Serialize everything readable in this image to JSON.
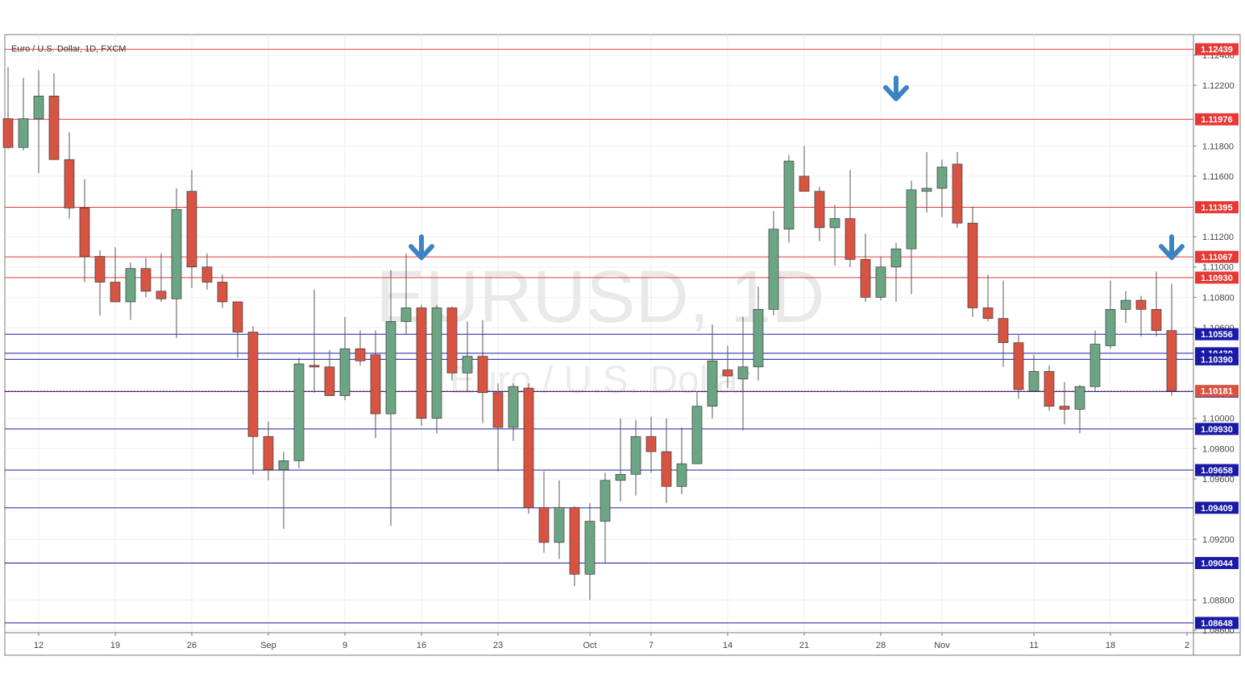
{
  "chart_data": {
    "type": "candlestick",
    "title": "Euro / U.S. Dollar, 1D, FXCM",
    "watermark_symbol": "EURUSD, 1D",
    "watermark_name": "Euro / U.S. Dollar",
    "ylim": [
      1.0864,
      1.1244
    ],
    "y_ticks": [
      "1.12400",
      "1.12200",
      "1.11800",
      "1.11600",
      "1.11200",
      "1.11000",
      "1.10800",
      "1.10600",
      "1.10000",
      "1.09800",
      "1.09600",
      "1.09200",
      "1.08800",
      "1.08600"
    ],
    "x_ticks": [
      {
        "label": "12",
        "index": 2
      },
      {
        "label": "19",
        "index": 7
      },
      {
        "label": "26",
        "index": 12
      },
      {
        "label": "Sep",
        "index": 17
      },
      {
        "label": "9",
        "index": 22
      },
      {
        "label": "16",
        "index": 27
      },
      {
        "label": "23",
        "index": 32
      },
      {
        "label": "Oct",
        "index": 38
      },
      {
        "label": "7",
        "index": 42
      },
      {
        "label": "14",
        "index": 47
      },
      {
        "label": "21",
        "index": 52
      },
      {
        "label": "28",
        "index": 57
      },
      {
        "label": "Nov",
        "index": 61
      },
      {
        "label": "11",
        "index": 67
      },
      {
        "label": "18",
        "index": 72
      },
      {
        "label": "2",
        "index": 77
      }
    ],
    "candles": [
      [
        1.1198,
        1.1232,
        1.1178,
        1.1179
      ],
      [
        1.1179,
        1.1225,
        1.1177,
        1.1198
      ],
      [
        1.1198,
        1.123,
        1.1162,
        1.1213
      ],
      [
        1.1213,
        1.1228,
        1.1171,
        1.1171
      ],
      [
        1.1171,
        1.1189,
        1.1132,
        1.1139
      ],
      [
        1.1139,
        1.1158,
        1.109,
        1.1107
      ],
      [
        1.1107,
        1.1111,
        1.1068,
        1.109
      ],
      [
        1.109,
        1.1113,
        1.1077,
        1.1077
      ],
      [
        1.1077,
        1.1103,
        1.1065,
        1.1099
      ],
      [
        1.1099,
        1.1106,
        1.108,
        1.1084
      ],
      [
        1.1084,
        1.1109,
        1.1077,
        1.1079
      ],
      [
        1.1079,
        1.1152,
        1.1053,
        1.1138
      ],
      [
        1.115,
        1.1164,
        1.1086,
        1.11
      ],
      [
        1.11,
        1.1109,
        1.1085,
        1.109
      ],
      [
        1.109,
        1.1095,
        1.1073,
        1.1077
      ],
      [
        1.1077,
        1.1077,
        1.104,
        1.1057
      ],
      [
        1.1057,
        1.1061,
        1.0963,
        1.0988
      ],
      [
        1.0988,
        1.0998,
        1.0959,
        1.0966
      ],
      [
        1.0966,
        1.0978,
        1.0927,
        1.0972
      ],
      [
        1.0972,
        1.104,
        1.0967,
        1.1036
      ],
      [
        1.1035,
        1.1085,
        1.1017,
        1.1034
      ],
      [
        1.1034,
        1.1045,
        1.1017,
        1.1015
      ],
      [
        1.1015,
        1.1067,
        1.1012,
        1.1046
      ],
      [
        1.1046,
        1.1058,
        1.1035,
        1.1038
      ],
      [
        1.1042,
        1.1058,
        1.0987,
        1.1003
      ],
      [
        1.1003,
        1.1098,
        1.0929,
        1.1064
      ],
      [
        1.1064,
        1.1109,
        1.1056,
        1.1073
      ],
      [
        1.1073,
        1.1075,
        1.0995,
        1.1
      ],
      [
        1.1,
        1.1075,
        1.099,
        1.1073
      ],
      [
        1.1073,
        1.1074,
        1.1025,
        1.103
      ],
      [
        1.103,
        1.1064,
        1.1018,
        1.1041
      ],
      [
        1.1041,
        1.1065,
        1.0997,
        1.1017
      ],
      [
        1.1017,
        1.1023,
        1.0965,
        1.0994
      ],
      [
        1.0994,
        1.1023,
        1.0985,
        1.1021
      ],
      [
        1.102,
        1.1023,
        1.0937,
        1.0941
      ],
      [
        1.0941,
        1.0965,
        1.0911,
        1.0918
      ],
      [
        1.0918,
        1.0959,
        1.0907,
        1.0941
      ],
      [
        1.0941,
        1.0942,
        1.0889,
        1.0897
      ],
      [
        1.0897,
        1.0944,
        1.088,
        1.0932
      ],
      [
        1.0932,
        1.0964,
        1.0904,
        1.0959
      ],
      [
        1.0959,
        1.1,
        1.0945,
        1.0963
      ],
      [
        1.0963,
        1.0999,
        1.0949,
        1.0988
      ],
      [
        1.0988,
        1.1001,
        1.0964,
        1.0978
      ],
      [
        1.0978,
        1.1,
        1.0944,
        1.0955
      ],
      [
        1.0955,
        1.0994,
        1.095,
        1.097
      ],
      [
        1.097,
        1.1018,
        1.097,
        1.1008
      ],
      [
        1.1008,
        1.1062,
        1.1,
        1.1038
      ],
      [
        1.1032,
        1.1048,
        1.102,
        1.1028
      ],
      [
        1.1026,
        1.1067,
        1.0992,
        1.1034
      ],
      [
        1.1034,
        1.1087,
        1.1025,
        1.1072
      ],
      [
        1.1072,
        1.1137,
        1.1068,
        1.1125
      ],
      [
        1.1125,
        1.1174,
        1.1116,
        1.117
      ],
      [
        1.116,
        1.118,
        1.1151,
        1.115
      ],
      [
        1.115,
        1.1153,
        1.1117,
        1.1126
      ],
      [
        1.1126,
        1.1141,
        1.1101,
        1.1132
      ],
      [
        1.1132,
        1.1164,
        1.11,
        1.1105
      ],
      [
        1.1105,
        1.1122,
        1.1077,
        1.108
      ],
      [
        1.108,
        1.1107,
        1.1078,
        1.11
      ],
      [
        1.11,
        1.1116,
        1.1077,
        1.1112
      ],
      [
        1.1112,
        1.1157,
        1.1082,
        1.1151
      ],
      [
        1.115,
        1.1176,
        1.1136,
        1.1152
      ],
      [
        1.1152,
        1.1171,
        1.1133,
        1.1166
      ],
      [
        1.1168,
        1.1176,
        1.1126,
        1.1129
      ],
      [
        1.1129,
        1.114,
        1.1067,
        1.1073
      ],
      [
        1.1073,
        1.1095,
        1.1064,
        1.1066
      ],
      [
        1.1066,
        1.1091,
        1.1034,
        1.105
      ],
      [
        1.105,
        1.1055,
        1.1013,
        1.1019
      ],
      [
        1.1018,
        1.1042,
        1.1018,
        1.1031
      ],
      [
        1.1031,
        1.1035,
        1.1005,
        1.1008
      ],
      [
        1.1008,
        1.1024,
        1.0996,
        1.1006
      ],
      [
        1.1006,
        1.1022,
        1.099,
        1.1021
      ],
      [
        1.1021,
        1.1058,
        1.1018,
        1.1049
      ],
      [
        1.1048,
        1.1091,
        1.1046,
        1.1072
      ],
      [
        1.1072,
        1.1084,
        1.1063,
        1.1078
      ],
      [
        1.1078,
        1.1081,
        1.1054,
        1.1072
      ],
      [
        1.1072,
        1.1097,
        1.1054,
        1.1058
      ],
      [
        1.1058,
        1.1089,
        1.1015,
        1.1018
      ]
    ],
    "up_color": "#6ba583",
    "down_color": "#d75442",
    "resistance_levels": [
      "1.12439",
      "1.11976",
      "1.11395",
      "1.11067",
      "1.10930"
    ],
    "support_levels": [
      "1.10556",
      "1.10430",
      "1.10390",
      "1.10177",
      "1.09930",
      "1.09658",
      "1.09409",
      "1.09044",
      "1.08648"
    ],
    "last_price": "1.10181",
    "resistance_color": "#e53935",
    "support_color": "#1a1aa6",
    "annotations": [
      {
        "type": "down-arrow",
        "index": 27,
        "price": 1.112
      },
      {
        "type": "down-arrow",
        "index": 58,
        "price": 1.1225
      },
      {
        "type": "down-arrow",
        "index": 76,
        "price": 1.112
      }
    ],
    "arrow_color": "#3d82c4",
    "grid": true,
    "legend": "none"
  }
}
